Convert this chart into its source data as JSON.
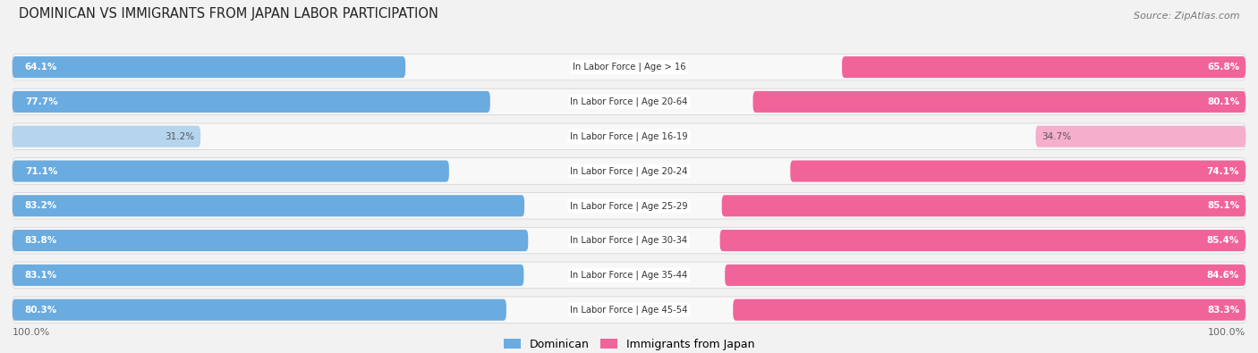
{
  "title": "DOMINICAN VS IMMIGRANTS FROM JAPAN LABOR PARTICIPATION",
  "source": "Source: ZipAtlas.com",
  "categories": [
    "In Labor Force | Age > 16",
    "In Labor Force | Age 20-64",
    "In Labor Force | Age 16-19",
    "In Labor Force | Age 20-24",
    "In Labor Force | Age 25-29",
    "In Labor Force | Age 30-34",
    "In Labor Force | Age 35-44",
    "In Labor Force | Age 45-54"
  ],
  "dominican_values": [
    64.1,
    77.7,
    31.2,
    71.1,
    83.2,
    83.8,
    83.1,
    80.3
  ],
  "japan_values": [
    65.8,
    80.1,
    34.7,
    74.1,
    85.1,
    85.4,
    84.6,
    83.3
  ],
  "dominican_color": "#6AABE0",
  "dominican_color_light": "#B5D4EE",
  "japan_color": "#F0649A",
  "japan_color_light": "#F5AECB",
  "background_color": "#f2f2f2",
  "row_bg_color": "#e4e4e4",
  "row_inner_color": "#f8f8f8",
  "legend_dominican": "Dominican",
  "legend_japan": "Immigrants from Japan"
}
